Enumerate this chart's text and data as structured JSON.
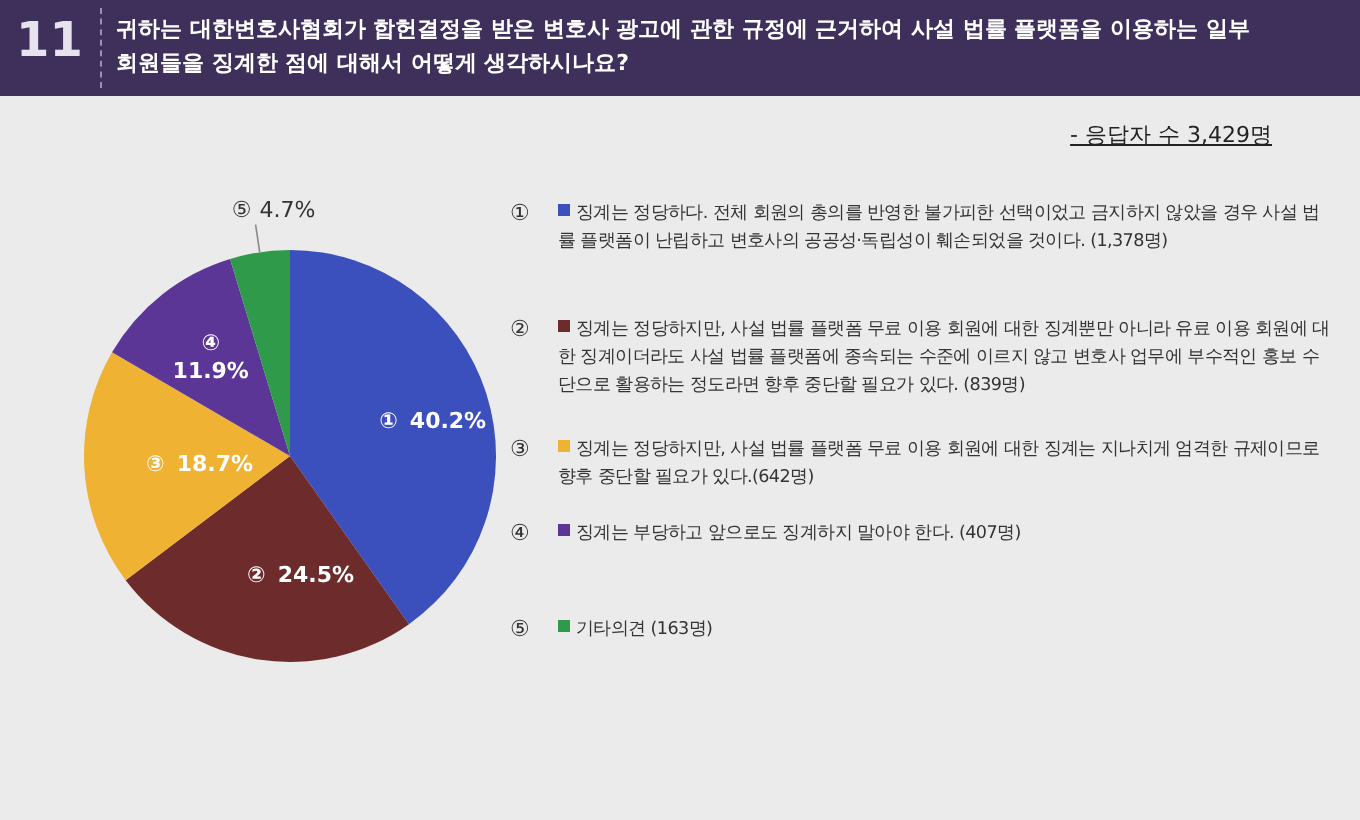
{
  "chart_data": {
    "type": "pie",
    "title": "귀하는 대한변호사협회가 합헌결정을 받은 변호사 광고에 관한 규정에 근거하여 사설 법률 플랫폼을 이용하는 일부 회원들을 징계한 점에 대해서 어떻게 생각하시나요?",
    "categories": [
      "①",
      "②",
      "③",
      "④",
      "⑤"
    ],
    "values": [
      40.2,
      24.5,
      18.7,
      11.9,
      4.7
    ],
    "colors": [
      "#3b4fbd",
      "#6e2b2b",
      "#f0b232",
      "#5b3697",
      "#2f9a4a"
    ],
    "value_labels": [
      "40.2%",
      "24.5%",
      "18.7%",
      "11.9%",
      "4.7%"
    ],
    "legend": "right",
    "annotations": [
      "11",
      "- 응답자 수 3,429명",
      "징계는 정당하다. 전체 회원의 총의를 반영한 불가피한 선택이었고 금지하지 않았을 경우 사설 법률 플랫폼이 난립하고 변호사의 공공성·독립성이 훼손되었을 것이다. (1,378명)",
      "징계는 정당하지만, 사설 법률 플랫폼 무료 이용 회원에 대한 징계뿐만 아니라 유료 이용 회원에 대한 징계이더라도 사설 법률 플랫폼에 종속되는 수준에 이르지 않고 변호사 업무에 부수적인 홍보 수단으로 활용하는 정도라면 향후 중단할 필요가 있다. (839명)",
      "징계는 정당하지만, 사설 법률 플랫폼 무료 이용 회원에 대한 징계는 지나치게 엄격한 규제이므로 향후 중단할 필요가 있다.(642명)",
      "징계는 부당하고 앞으로도 징계하지 말아야 한다. (407명)",
      "기타의견 (163명)"
    ]
  }
}
